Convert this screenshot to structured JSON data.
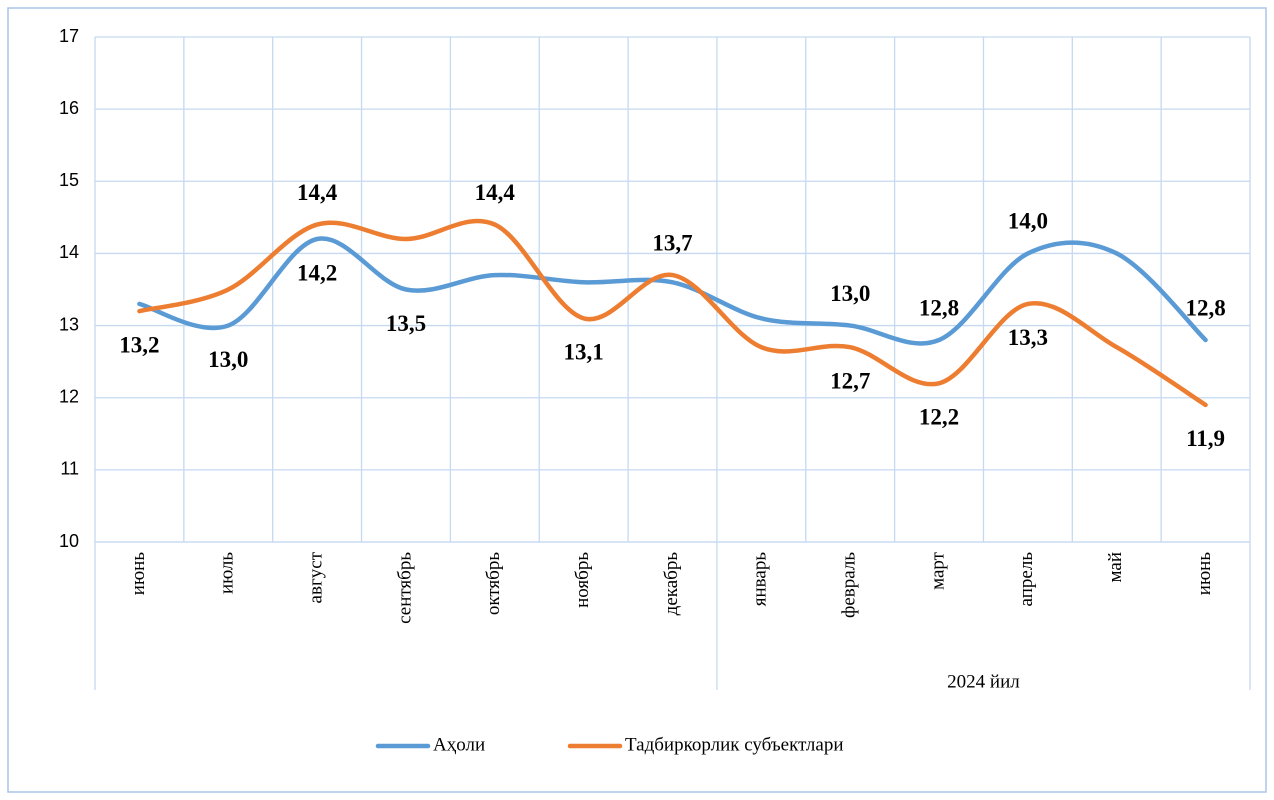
{
  "chart_data": {
    "type": "line",
    "categories": [
      "июнь",
      "июль",
      "август",
      "сентябрь",
      "октябрь",
      "ноябрь",
      "декабрь",
      "январь",
      "февраль",
      "март",
      "апрель",
      "май",
      "июнь"
    ],
    "groups": [
      {
        "label": null,
        "span": 7
      },
      {
        "label": "2024 йил",
        "span": 6
      }
    ],
    "series": [
      {
        "name": "Аҳоли",
        "color": "#5b9bd5",
        "values": [
          13.3,
          13.0,
          14.2,
          13.5,
          13.7,
          13.6,
          13.6,
          13.1,
          13.0,
          12.8,
          14.0,
          14.0,
          12.8
        ],
        "value_labels": [
          null,
          "13,0",
          "14,2",
          "13,5",
          null,
          null,
          null,
          null,
          "13,0",
          "12,8",
          "14,0",
          null,
          "12,8"
        ]
      },
      {
        "name": "Тадбиркорлик субъектлари",
        "color": "#ed7d31",
        "values": [
          13.2,
          13.5,
          14.4,
          14.2,
          14.4,
          13.1,
          13.7,
          12.7,
          12.7,
          12.2,
          13.3,
          12.7,
          11.9
        ],
        "value_labels": [
          "13,2",
          null,
          "14,4",
          null,
          "14,4",
          "13,1",
          "13,7",
          null,
          "12,7",
          "12,2",
          "13,3",
          null,
          "11,9"
        ]
      }
    ],
    "ylim": [
      10,
      17
    ],
    "yticks": [
      10,
      11,
      12,
      13,
      14,
      15,
      16,
      17
    ],
    "grid": true,
    "legend": "bottom"
  }
}
